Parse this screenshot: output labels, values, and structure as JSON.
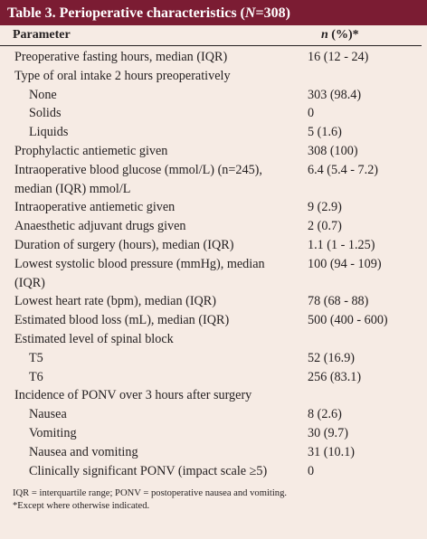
{
  "table_title": {
    "before": "Table 3. Perioperative characteristics (",
    "italic": "N",
    "after": "=308)"
  },
  "header": {
    "parameter": "Parameter",
    "value_italic": "n",
    "value_rest": " (%)*"
  },
  "rows": [
    {
      "label": "Preoperative fasting hours, median (IQR)",
      "value": "16 (12 - 24)"
    },
    {
      "label": "Type of oral intake 2 hours preoperatively",
      "items": [
        {
          "label": "None",
          "value": "303 (98.4)"
        },
        {
          "label": "Solids",
          "value": "0"
        },
        {
          "label": "Liquids",
          "value": "5 (1.6)"
        }
      ]
    },
    {
      "label": "Prophylactic antiemetic given",
      "value": "308 (100)"
    },
    {
      "label": "Intraoperative blood glucose (mmol/L) (n=245), median (IQR) mmol/L",
      "value": "6.4 (5.4 - 7.2)"
    },
    {
      "label": "Intraoperative antiemetic given",
      "value": "9 (2.9)"
    },
    {
      "label": "Anaesthetic adjuvant drugs given",
      "value": "2 (0.7)"
    },
    {
      "label": "Duration of surgery (hours), median (IQR)",
      "value": "1.1 (1 - 1.25)"
    },
    {
      "label": "Lowest systolic blood pressure (mmHg), median (IQR)",
      "value": "100 (94 - 109)"
    },
    {
      "label": "Lowest heart rate (bpm), median (IQR)",
      "value": "78 (68 - 88)"
    },
    {
      "label": "Estimated blood loss (mL), median (IQR)",
      "value": "500 (400 - 600)"
    },
    {
      "label": "Estimated level of spinal block",
      "items": [
        {
          "label": "T5",
          "value": "52 (16.9)"
        },
        {
          "label": "T6",
          "value": "256 (83.1)"
        }
      ]
    },
    {
      "label": "Incidence of PONV over 3 hours after surgery",
      "items": [
        {
          "label": "Nausea",
          "value": "8 (2.6)"
        },
        {
          "label": "Vomiting",
          "value": "30 (9.7)"
        },
        {
          "label": "Nausea and vomiting",
          "value": "31 (10.1)"
        },
        {
          "label": "Clinically significant PONV (impact scale ≥5)",
          "value": "0"
        }
      ]
    }
  ],
  "footnotes": [
    "IQR = interquartile range; PONV = postoperative nausea and vomiting.",
    "*Except where otherwise indicated."
  ]
}
